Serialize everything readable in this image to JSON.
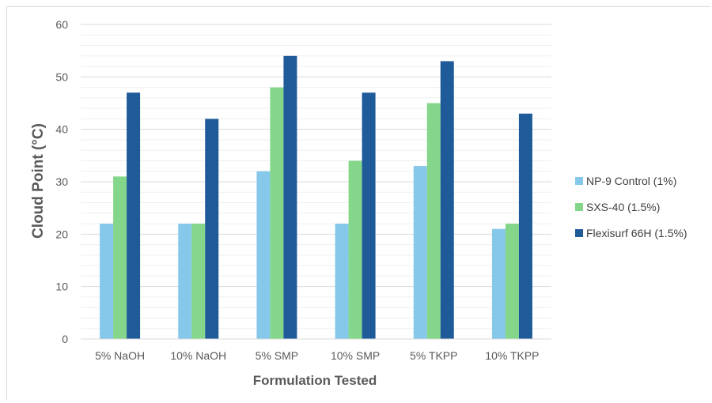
{
  "chart_data": {
    "type": "bar",
    "title": "",
    "xlabel": "Formulation Tested",
    "ylabel": "Cloud Point (°C)",
    "ylim": [
      0,
      60
    ],
    "yticks": [
      0,
      10,
      20,
      30,
      40,
      50,
      60
    ],
    "grid": true,
    "legend_position": "right",
    "categories": [
      "5% NaOH",
      "10% NaOH",
      "5% SMP",
      "10% SMP",
      "5% TKPP",
      "10% TKPP"
    ],
    "series": [
      {
        "name": "NP-9 Control (1%)",
        "color": "#85c8ea",
        "values": [
          22,
          22,
          32,
          22,
          33,
          21
        ]
      },
      {
        "name": "SXS-40 (1.5%)",
        "color": "#84d68b",
        "values": [
          31,
          22,
          48,
          34,
          45,
          22
        ]
      },
      {
        "name": "Flexisurf 66H (1.5%)",
        "color": "#1f5a99",
        "values": [
          47,
          42,
          54,
          47,
          53,
          43
        ]
      }
    ]
  }
}
